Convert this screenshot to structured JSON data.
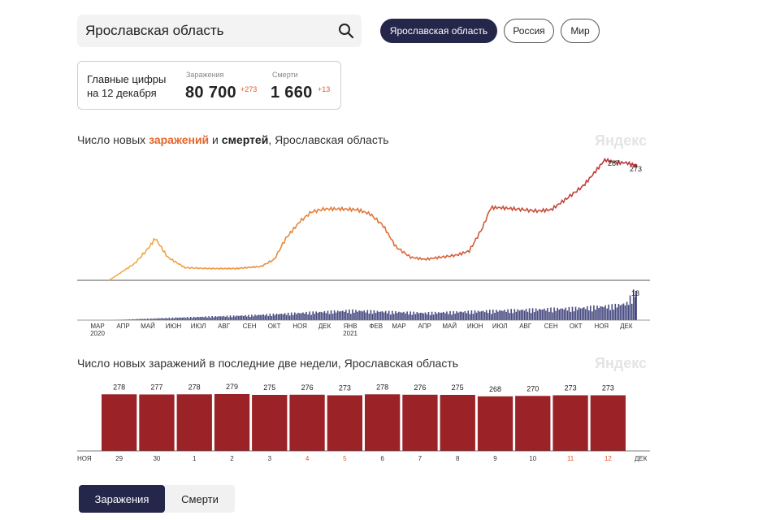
{
  "search": {
    "value": "Ярославская область"
  },
  "region_buttons": {
    "active": "Ярославская область",
    "russia": "Россия",
    "world": "Мир"
  },
  "main_figures": {
    "label": "Главные цифры на 12 декабря",
    "infections": {
      "label": "Заражения",
      "value": "80 700",
      "delta": "+273"
    },
    "deaths": {
      "label": "Смерти",
      "value": "1 660",
      "delta": "+13"
    }
  },
  "chart1": {
    "title_pre": "Число новых ",
    "title_inf": "заражений",
    "title_mid": " и ",
    "title_death": "смертей",
    "title_post": ", Ярославская область",
    "watermark": "Яндекс",
    "peak_label": "287",
    "last_label": "273",
    "death_last_label": "13"
  },
  "chart2": {
    "title": "Число новых заражений в последние две недели, Ярославская область",
    "watermark": "Яндекс",
    "left_label": "НОЯ",
    "right_label": "ДЕК"
  },
  "tabs": {
    "infections": "Заражения",
    "deaths": "Смерти"
  },
  "chart_data": [
    {
      "type": "line",
      "title": "Число новых заражений и смертей, Ярославская область",
      "x_ticks": [
        "МАР",
        "АПР",
        "МАЙ",
        "ИЮН",
        "ИЮЛ",
        "АВГ",
        "СЕН",
        "ОКТ",
        "НОЯ",
        "ДЕК",
        "ЯНВ",
        "ФЕВ",
        "МАР",
        "АПР",
        "МАЙ",
        "ИЮН",
        "ИЮЛ",
        "АВГ",
        "СЕН",
        "ОКТ",
        "НОЯ",
        "ДЕК"
      ],
      "year_labels": [
        {
          "under": "МАР",
          "text": "2020"
        },
        {
          "under": "ЯНВ",
          "text": "2021"
        }
      ],
      "series": [
        {
          "name": "заражений",
          "x": [
            "2020-03-15",
            "2020-04-15",
            "2020-05-01",
            "2020-05-10",
            "2020-05-25",
            "2020-06-15",
            "2020-07-15",
            "2020-08-15",
            "2020-09-15",
            "2020-10-01",
            "2020-10-15",
            "2020-11-01",
            "2020-11-15",
            "2020-12-01",
            "2020-12-20",
            "2021-01-10",
            "2021-01-25",
            "2021-02-10",
            "2021-02-25",
            "2021-03-15",
            "2021-04-01",
            "2021-04-20",
            "2021-05-10",
            "2021-05-25",
            "2021-06-10",
            "2021-06-20",
            "2021-07-01",
            "2021-07-20",
            "2021-08-15",
            "2021-09-01",
            "2021-09-20",
            "2021-10-10",
            "2021-10-25",
            "2021-11-05",
            "2021-11-20",
            "2021-12-01",
            "2021-12-12"
          ],
          "values": [
            0,
            40,
            75,
            100,
            55,
            30,
            28,
            28,
            33,
            50,
            100,
            140,
            163,
            170,
            170,
            168,
            158,
            130,
            80,
            55,
            50,
            55,
            60,
            70,
            125,
            173,
            173,
            170,
            165,
            168,
            195,
            225,
            260,
            287,
            280,
            280,
            273
          ]
        },
        {
          "name": "смертей",
          "x": [
            "2020-03-15",
            "2020-06-01",
            "2020-09-01",
            "2020-11-01",
            "2021-01-01",
            "2021-04-01",
            "2021-07-01",
            "2021-10-01",
            "2021-11-15",
            "2021-12-01",
            "2021-12-12"
          ],
          "values": [
            0,
            1,
            2,
            3,
            4,
            3,
            4,
            5,
            6,
            7,
            13
          ]
        }
      ]
    },
    {
      "type": "bar",
      "title": "Число новых заражений в последние две недели, Ярославская область",
      "categories": [
        "29",
        "30",
        "1",
        "2",
        "3",
        "4",
        "5",
        "6",
        "7",
        "8",
        "9",
        "10",
        "11",
        "12"
      ],
      "values": [
        278,
        277,
        278,
        279,
        275,
        276,
        273,
        278,
        276,
        275,
        268,
        270,
        273,
        273
      ],
      "weekend_indices": [
        5,
        6,
        12,
        13
      ],
      "xlabels": [
        "НОЯ",
        "ДЕК"
      ],
      "colors": {
        "bar": "#9b2226",
        "weekend_tick": "#e05a2a"
      }
    }
  ],
  "colors": {
    "dark_button": "#24264a",
    "infection_accent": "#e5662b",
    "death_area": "#474a80",
    "bar": "#9b2226"
  }
}
